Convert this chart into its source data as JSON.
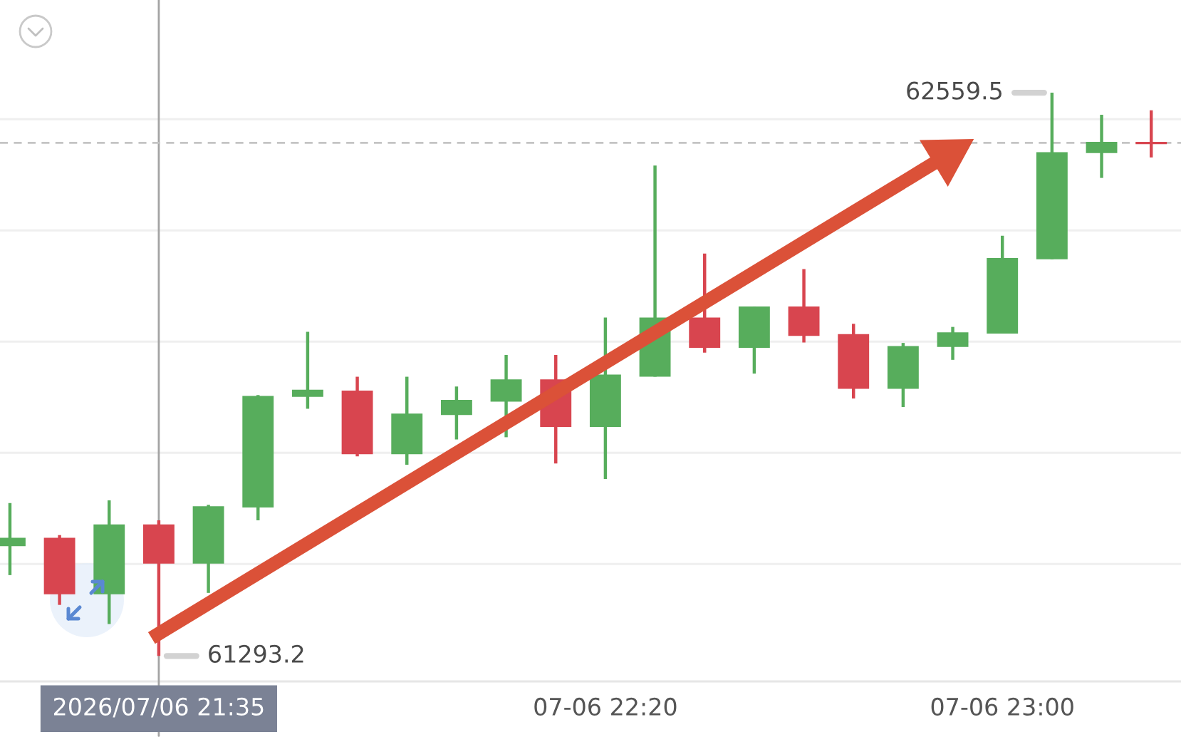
{
  "chart_data": {
    "type": "candlestick",
    "x": [
      "2026-07-06T21:20",
      "2026-07-06T21:25",
      "2026-07-06T21:30",
      "2026-07-06T21:35",
      "2026-07-06T21:40",
      "2026-07-06T21:45",
      "2026-07-06T21:50",
      "2026-07-06T21:55",
      "2026-07-06T22:00",
      "2026-07-06T22:05",
      "2026-07-06T22:10",
      "2026-07-06T22:15",
      "2026-07-06T22:20",
      "2026-07-06T22:25",
      "2026-07-06T22:30",
      "2026-07-06T22:35",
      "2026-07-06T22:40",
      "2026-07-06T22:45",
      "2026-07-06T22:50",
      "2026-07-06T22:55",
      "2026-07-06T23:00",
      "2026-07-06T23:05",
      "2026-07-06T23:10",
      "2026-07-06T23:15"
    ],
    "ohlc": [
      [
        61540,
        61637,
        61475,
        61559
      ],
      [
        61559,
        61565,
        61408,
        61432
      ],
      [
        61432,
        61643,
        61365,
        61589
      ],
      [
        61589,
        61598,
        61293.2,
        61501
      ],
      [
        61501,
        61633,
        61435,
        61630
      ],
      [
        61627,
        61880,
        61598,
        61878
      ],
      [
        61876,
        62022,
        61849,
        61892
      ],
      [
        61890,
        61921,
        61742,
        61747
      ],
      [
        61747,
        61921,
        61723,
        61838
      ],
      [
        61835,
        61899,
        61780,
        61869
      ],
      [
        61865,
        61970,
        61785,
        61915
      ],
      [
        61915,
        61970,
        61726,
        61808
      ],
      [
        61808,
        62054,
        61691,
        61926
      ],
      [
        61921,
        62396,
        61921,
        62054
      ],
      [
        62054,
        62198,
        61975,
        61986
      ],
      [
        61986,
        62079,
        61928,
        62079
      ],
      [
        62079,
        62163,
        61998,
        62013
      ],
      [
        62017,
        62040,
        61872,
        61894
      ],
      [
        61894,
        61997,
        61853,
        61990
      ],
      [
        61988,
        62033,
        61959,
        62021
      ],
      [
        62018,
        62238,
        62018,
        62188
      ],
      [
        62185,
        62559.5,
        62185,
        62426
      ],
      [
        62424,
        62510,
        62368,
        62449
      ],
      [
        62449,
        62520,
        62414,
        62444
      ]
    ],
    "colors": [
      "#57ad5c",
      "#d8454f",
      "#57ad5c",
      "#d8454f",
      "#57ad5c",
      "#57ad5c",
      "#57ad5c",
      "#d8454f",
      "#57ad5c",
      "#57ad5c",
      "#57ad5c",
      "#d8454f",
      "#57ad5c",
      "#57ad5c",
      "#d8454f",
      "#57ad5c",
      "#d8454f",
      "#d8454f",
      "#57ad5c",
      "#57ad5c",
      "#57ad5c",
      "#57ad5c",
      "#57ad5c",
      "#d8454f"
    ],
    "xlim": [
      "2026-07-06T21:19",
      "2026-07-06T23:18"
    ],
    "xticks": [
      {
        "value": "2026-07-06T22:20",
        "label": "07-06 22:20"
      },
      {
        "value": "2026-07-06T23:00",
        "label": "07-06 23:00"
      }
    ],
    "ylim": [
      61236,
      62768
    ],
    "yticks": [
      {
        "value": 61500,
        "label": null
      },
      {
        "value": 61750,
        "label": null
      },
      {
        "value": 62000,
        "label": null
      },
      {
        "value": 62250,
        "label": null
      },
      {
        "value": 62500,
        "label": null
      }
    ],
    "tick_labels": "x",
    "grid": "y",
    "ref_lines": [
      {
        "axis": "x",
        "value": "2026-07-06T21:35",
        "label": "2026/07/06 21:35",
        "color": "#a3a3a3",
        "line_style": "solid"
      },
      {
        "axis": "y",
        "value": 62447,
        "color": "#c4c4c4",
        "line_style": "dashed"
      }
    ],
    "annotations": [
      {
        "text": "62559.5",
        "x": "2026-07-06T23:05",
        "y": 62559.5
      },
      {
        "text": "61293.2",
        "x": "2026-07-06T21:35",
        "y": 61293.2
      }
    ]
  }
}
